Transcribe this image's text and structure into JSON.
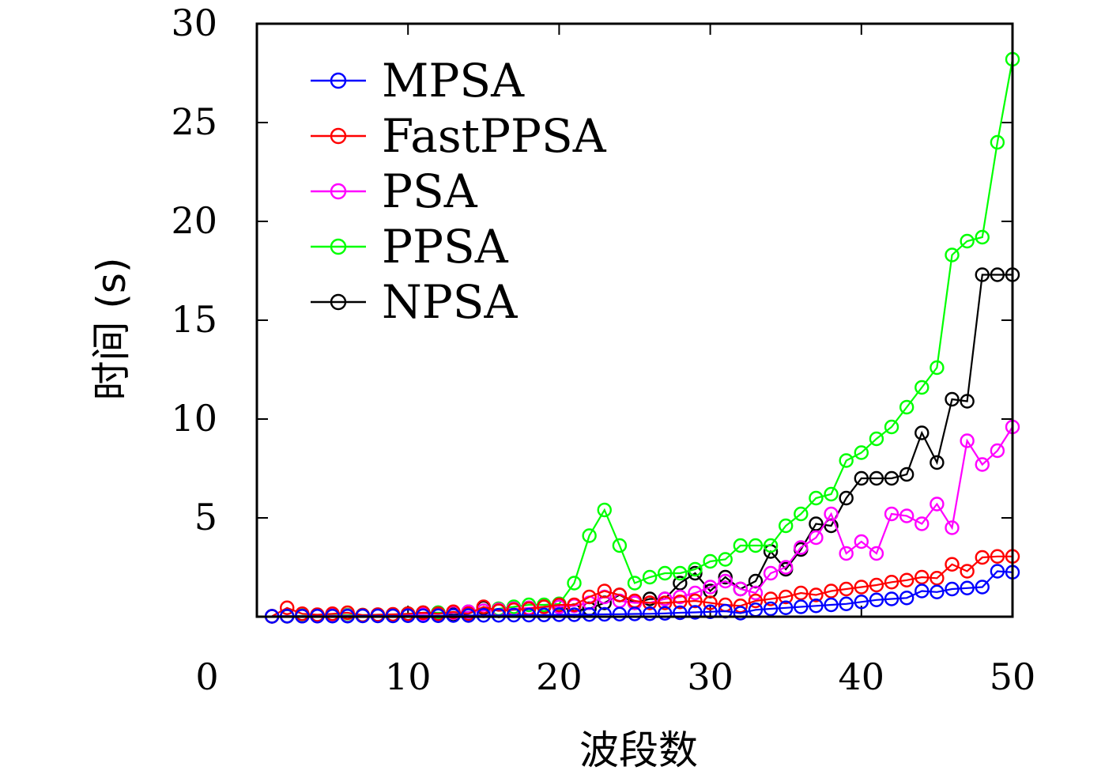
{
  "chart_data": {
    "type": "line",
    "xlabel": "波段数",
    "ylabel": "时间 (s)",
    "xlim": [
      0,
      50
    ],
    "ylim": [
      0,
      30
    ],
    "xticks": [
      0,
      10,
      20,
      30,
      40,
      50
    ],
    "yticks": [
      5,
      10,
      15,
      20,
      25,
      30
    ],
    "grid": false,
    "legend": "top-left",
    "x": [
      1,
      2,
      3,
      4,
      5,
      6,
      7,
      8,
      9,
      10,
      11,
      12,
      13,
      14,
      15,
      16,
      17,
      18,
      19,
      20,
      21,
      22,
      23,
      24,
      25,
      26,
      27,
      28,
      29,
      30,
      31,
      32,
      33,
      34,
      35,
      36,
      37,
      38,
      39,
      40,
      41,
      42,
      43,
      44,
      45,
      46,
      47,
      48,
      49,
      50
    ],
    "series": [
      {
        "name": "MPSA",
        "color": "#0000ff",
        "values": [
          0.02,
          0.03,
          0.03,
          0.03,
          0.03,
          0.03,
          0.04,
          0.04,
          0.04,
          0.05,
          0.05,
          0.05,
          0.06,
          0.06,
          0.07,
          0.07,
          0.08,
          0.08,
          0.09,
          0.1,
          0.1,
          0.11,
          0.12,
          0.13,
          0.14,
          0.15,
          0.17,
          0.2,
          0.22,
          0.25,
          0.28,
          0.18,
          0.35,
          0.4,
          0.45,
          0.5,
          0.55,
          0.6,
          0.65,
          0.75,
          0.85,
          0.9,
          0.95,
          1.3,
          1.25,
          1.4,
          1.45,
          1.5,
          2.3,
          2.25
        ]
      },
      {
        "name": "FastPPSA",
        "color": "#ff0000",
        "values": [
          0.02,
          0.45,
          0.15,
          0.1,
          0.15,
          0.2,
          0.08,
          0.1,
          0.12,
          0.15,
          0.2,
          0.15,
          0.25,
          0.15,
          0.5,
          0.3,
          0.35,
          0.4,
          0.5,
          0.6,
          0.6,
          1.0,
          1.3,
          1.1,
          0.8,
          0.7,
          0.7,
          0.75,
          0.8,
          0.7,
          0.6,
          0.55,
          0.8,
          0.9,
          1.0,
          1.2,
          1.1,
          1.3,
          1.4,
          1.5,
          1.6,
          1.75,
          1.85,
          2.0,
          1.95,
          2.65,
          2.3,
          3.0,
          3.05,
          3.05
        ]
      },
      {
        "name": "PSA",
        "color": "#ff00ff",
        "values": [
          0.02,
          0.03,
          0.03,
          0.03,
          0.05,
          0.05,
          0.05,
          0.1,
          0.1,
          0.12,
          0.15,
          0.15,
          0.2,
          0.25,
          0.3,
          0.35,
          0.4,
          0.45,
          0.5,
          0.5,
          0.55,
          0.7,
          1.0,
          0.8,
          0.7,
          0.7,
          0.9,
          1.0,
          1.2,
          1.5,
          1.8,
          1.4,
          1.2,
          2.2,
          2.5,
          3.5,
          4.0,
          5.2,
          3.2,
          3.8,
          3.2,
          5.2,
          5.1,
          4.7,
          5.7,
          4.5,
          8.9,
          7.7,
          8.4,
          9.6
        ]
      },
      {
        "name": "PPSA",
        "color": "#00ff00",
        "values": [
          0.02,
          0.03,
          0.05,
          0.05,
          0.08,
          0.08,
          0.08,
          0.1,
          0.1,
          0.15,
          0.15,
          0.2,
          0.2,
          0.25,
          0.3,
          0.4,
          0.5,
          0.6,
          0.6,
          0.65,
          1.7,
          4.1,
          5.4,
          3.6,
          1.7,
          2.0,
          2.2,
          2.2,
          2.4,
          2.8,
          2.9,
          3.6,
          3.6,
          3.6,
          4.6,
          5.2,
          6.0,
          6.2,
          7.9,
          8.3,
          9.0,
          9.6,
          10.6,
          11.6,
          12.6,
          18.3,
          19.0,
          19.2,
          24.0,
          28.2
        ]
      },
      {
        "name": "NPSA",
        "color": "#000000",
        "values": [
          0.02,
          0.02,
          0.03,
          0.05,
          0.05,
          0.05,
          0.05,
          0.08,
          0.1,
          0.15,
          0.2,
          0.2,
          0.1,
          0.15,
          0.45,
          0.3,
          0.4,
          0.4,
          0.5,
          0.5,
          0.3,
          0.4,
          0.7,
          1.1,
          0.7,
          0.9,
          0.9,
          1.7,
          2.2,
          1.3,
          2.0,
          1.4,
          1.8,
          3.3,
          2.4,
          3.4,
          4.7,
          4.6,
          6.0,
          7.0,
          7.0,
          7.0,
          7.2,
          9.3,
          7.8,
          11.0,
          10.9,
          17.3,
          17.3,
          17.3
        ]
      }
    ]
  }
}
